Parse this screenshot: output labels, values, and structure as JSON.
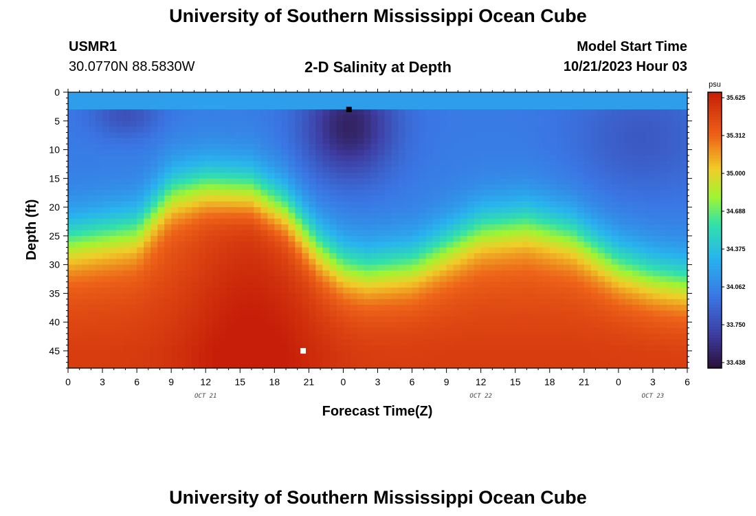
{
  "header": {
    "title": "University of Southern Mississippi Ocean Cube",
    "station": "USMR1",
    "coords": "30.0770N  88.5830W",
    "subtitle": "2-D Salinity at Depth",
    "model_start_label": "Model Start Time",
    "model_start_value": "10/21/2023 Hour 03"
  },
  "footer": {
    "title": "University of Southern Mississippi Ocean Cube"
  },
  "chart_data": {
    "type": "heatmap",
    "title": "2-D Salinity at Depth",
    "xlabel": "Forecast Time(Z)",
    "ylabel": "Depth (ft)",
    "x_ticks": [
      "0",
      "3",
      "6",
      "9",
      "12",
      "15",
      "18",
      "21",
      "0",
      "3",
      "6",
      "9",
      "12",
      "15",
      "18",
      "21",
      "0",
      "3",
      "6"
    ],
    "x_range_hours": [
      0,
      54
    ],
    "y_ticks": [
      "0",
      "5",
      "10",
      "15",
      "20",
      "25",
      "30",
      "35",
      "40",
      "45"
    ],
    "y_range_ft": [
      0,
      48
    ],
    "date_labels": [
      {
        "text": "OCT 21",
        "hour": 12
      },
      {
        "text": "OCT 22",
        "hour": 36
      },
      {
        "text": "OCT 23",
        "hour": 51
      }
    ],
    "colorbar": {
      "unit": "psu",
      "ticks": [
        "35.625",
        "35.312",
        "35.000",
        "34.688",
        "34.375",
        "34.062",
        "33.750",
        "33.438"
      ],
      "range": [
        33.3,
        35.75
      ]
    },
    "halocline_depth_ft": [
      {
        "hour": 0,
        "depth": 26
      },
      {
        "hour": 6,
        "depth": 24
      },
      {
        "hour": 9,
        "depth": 17.5
      },
      {
        "hour": 12,
        "depth": 16
      },
      {
        "hour": 16,
        "depth": 16.5
      },
      {
        "hour": 19,
        "depth": 20
      },
      {
        "hour": 22,
        "depth": 27
      },
      {
        "hour": 24,
        "depth": 30
      },
      {
        "hour": 26,
        "depth": 31
      },
      {
        "hour": 30,
        "depth": 30
      },
      {
        "hour": 33,
        "depth": 27
      },
      {
        "hour": 36,
        "depth": 24
      },
      {
        "hour": 40,
        "depth": 23
      },
      {
        "hour": 44,
        "depth": 25
      },
      {
        "hour": 48,
        "depth": 30
      },
      {
        "hour": 51,
        "depth": 32
      },
      {
        "hour": 54,
        "depth": 33
      }
    ],
    "markers": [
      {
        "name": "minimum-marker",
        "hour": 24.5,
        "depth": 3,
        "color": "#000000"
      },
      {
        "name": "maximum-marker",
        "hour": 20.5,
        "depth": 45,
        "color": "#ffffff"
      }
    ]
  }
}
